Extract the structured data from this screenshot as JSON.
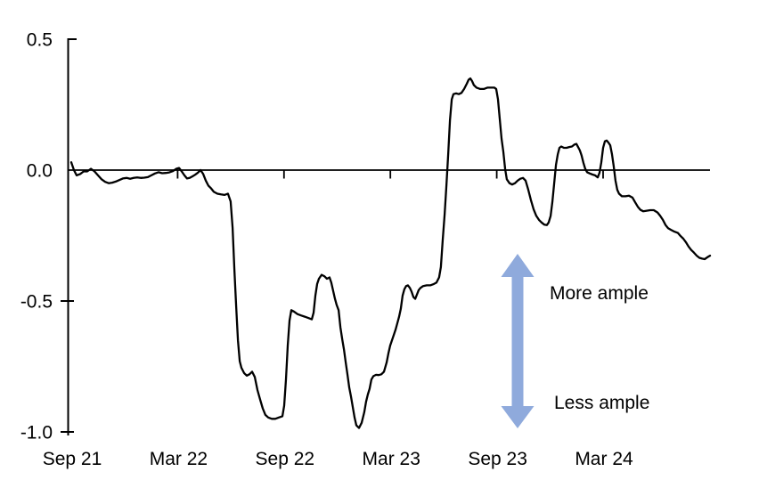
{
  "chart_data": {
    "type": "line",
    "title": "",
    "x_axis": {
      "unit": "months since Sep 2021",
      "tick_labels": [
        "Sep 21",
        "Mar 22",
        "Sep 22",
        "Mar 23",
        "Sep 23",
        "Mar 24"
      ],
      "tick_positions_months": [
        0,
        6,
        12,
        18,
        24,
        30
      ],
      "range_months": [
        0,
        36.03
      ],
      "grid": "off"
    },
    "y_axis": {
      "tick_labels": [
        "0.5",
        "0.0",
        "-0.5",
        "-1.0"
      ],
      "tick_values": [
        0.5,
        0.0,
        -0.5,
        -1.0
      ],
      "range": [
        -1.0,
        0.5
      ],
      "zero_line": true
    },
    "series": [
      {
        "name": "indicator",
        "color": "#000000",
        "points": [
          [
            0,
            0.03
          ],
          [
            0.15,
            0
          ],
          [
            0.3,
            -0.02
          ],
          [
            0.5,
            -0.015
          ],
          [
            0.7,
            -0.005
          ],
          [
            0.9,
            -0.005
          ],
          [
            1.11,
            0.005
          ],
          [
            1.31,
            -0.005
          ],
          [
            1.51,
            -0.02
          ],
          [
            1.71,
            -0.035
          ],
          [
            1.91,
            -0.045
          ],
          [
            2.11,
            -0.05
          ],
          [
            2.31,
            -0.048
          ],
          [
            2.51,
            -0.044
          ],
          [
            2.71,
            -0.038
          ],
          [
            2.91,
            -0.032
          ],
          [
            3.12,
            -0.03
          ],
          [
            3.32,
            -0.033
          ],
          [
            3.52,
            -0.03
          ],
          [
            3.72,
            -0.028
          ],
          [
            3.92,
            -0.03
          ],
          [
            4.12,
            -0.029
          ],
          [
            4.32,
            -0.027
          ],
          [
            4.52,
            -0.02
          ],
          [
            4.72,
            -0.013
          ],
          [
            4.92,
            -0.008
          ],
          [
            5.13,
            -0.012
          ],
          [
            5.33,
            -0.011
          ],
          [
            5.53,
            -0.009
          ],
          [
            5.73,
            -0.004
          ],
          [
            5.93,
            0.005
          ],
          [
            6.08,
            0.008
          ],
          [
            6.23,
            -0.005
          ],
          [
            6.38,
            -0.02
          ],
          [
            6.53,
            -0.032
          ],
          [
            6.68,
            -0.03
          ],
          [
            6.83,
            -0.024
          ],
          [
            6.98,
            -0.018
          ],
          [
            7.14,
            -0.01
          ],
          [
            7.29,
            0
          ],
          [
            7.44,
            -0.015
          ],
          [
            7.59,
            -0.04
          ],
          [
            7.74,
            -0.06
          ],
          [
            7.89,
            -0.07
          ],
          [
            8.04,
            -0.083
          ],
          [
            8.24,
            -0.09
          ],
          [
            8.44,
            -0.093
          ],
          [
            8.64,
            -0.095
          ],
          [
            8.84,
            -0.09
          ],
          [
            8.99,
            -0.12
          ],
          [
            9.1,
            -0.22
          ],
          [
            9.2,
            -0.38
          ],
          [
            9.3,
            -0.52
          ],
          [
            9.4,
            -0.65
          ],
          [
            9.5,
            -0.73
          ],
          [
            9.6,
            -0.755
          ],
          [
            9.75,
            -0.775
          ],
          [
            9.9,
            -0.785
          ],
          [
            10.05,
            -0.78
          ],
          [
            10.2,
            -0.77
          ],
          [
            10.35,
            -0.79
          ],
          [
            10.5,
            -0.84
          ],
          [
            10.65,
            -0.875
          ],
          [
            10.8,
            -0.91
          ],
          [
            10.95,
            -0.935
          ],
          [
            11.11,
            -0.945
          ],
          [
            11.31,
            -0.95
          ],
          [
            11.51,
            -0.95
          ],
          [
            11.71,
            -0.945
          ],
          [
            11.91,
            -0.94
          ],
          [
            12.01,
            -0.9
          ],
          [
            12.11,
            -0.8
          ],
          [
            12.21,
            -0.67
          ],
          [
            12.31,
            -0.575
          ],
          [
            12.41,
            -0.535
          ],
          [
            12.56,
            -0.54
          ],
          [
            12.76,
            -0.55
          ],
          [
            12.96,
            -0.555
          ],
          [
            13.17,
            -0.56
          ],
          [
            13.37,
            -0.565
          ],
          [
            13.57,
            -0.57
          ],
          [
            13.67,
            -0.545
          ],
          [
            13.77,
            -0.48
          ],
          [
            13.87,
            -0.435
          ],
          [
            13.97,
            -0.415
          ],
          [
            14.12,
            -0.4
          ],
          [
            14.27,
            -0.405
          ],
          [
            14.42,
            -0.415
          ],
          [
            14.57,
            -0.41
          ],
          [
            14.67,
            -0.43
          ],
          [
            14.77,
            -0.46
          ],
          [
            14.87,
            -0.49
          ],
          [
            14.97,
            -0.515
          ],
          [
            15.08,
            -0.535
          ],
          [
            15.18,
            -0.6
          ],
          [
            15.28,
            -0.645
          ],
          [
            15.38,
            -0.685
          ],
          [
            15.48,
            -0.735
          ],
          [
            15.58,
            -0.78
          ],
          [
            15.68,
            -0.83
          ],
          [
            15.78,
            -0.865
          ],
          [
            15.88,
            -0.905
          ],
          [
            15.98,
            -0.945
          ],
          [
            16.08,
            -0.975
          ],
          [
            16.23,
            -0.985
          ],
          [
            16.38,
            -0.965
          ],
          [
            16.53,
            -0.925
          ],
          [
            16.63,
            -0.885
          ],
          [
            16.73,
            -0.857
          ],
          [
            16.83,
            -0.835
          ],
          [
            16.93,
            -0.8
          ],
          [
            17.04,
            -0.787
          ],
          [
            17.19,
            -0.782
          ],
          [
            17.34,
            -0.783
          ],
          [
            17.49,
            -0.78
          ],
          [
            17.64,
            -0.77
          ],
          [
            17.79,
            -0.735
          ],
          [
            17.89,
            -0.7
          ],
          [
            17.99,
            -0.67
          ],
          [
            18.09,
            -0.65
          ],
          [
            18.19,
            -0.63
          ],
          [
            18.29,
            -0.61
          ],
          [
            18.39,
            -0.585
          ],
          [
            18.49,
            -0.56
          ],
          [
            18.59,
            -0.53
          ],
          [
            18.69,
            -0.48
          ],
          [
            18.79,
            -0.455
          ],
          [
            18.89,
            -0.443
          ],
          [
            18.99,
            -0.44
          ],
          [
            19.1,
            -0.45
          ],
          [
            19.2,
            -0.465
          ],
          [
            19.3,
            -0.485
          ],
          [
            19.4,
            -0.492
          ],
          [
            19.5,
            -0.475
          ],
          [
            19.6,
            -0.458
          ],
          [
            19.7,
            -0.45
          ],
          [
            19.85,
            -0.443
          ],
          [
            20.05,
            -0.44
          ],
          [
            20.25,
            -0.44
          ],
          [
            20.45,
            -0.435
          ],
          [
            20.6,
            -0.43
          ],
          [
            20.75,
            -0.41
          ],
          [
            20.85,
            -0.37
          ],
          [
            20.95,
            -0.27
          ],
          [
            21.06,
            -0.17
          ],
          [
            21.16,
            -0.06
          ],
          [
            21.26,
            0.06
          ],
          [
            21.36,
            0.19
          ],
          [
            21.46,
            0.27
          ],
          [
            21.56,
            0.29
          ],
          [
            21.71,
            0.293
          ],
          [
            21.86,
            0.29
          ],
          [
            22.01,
            0.295
          ],
          [
            22.16,
            0.31
          ],
          [
            22.31,
            0.33
          ],
          [
            22.41,
            0.345
          ],
          [
            22.51,
            0.35
          ],
          [
            22.61,
            0.34
          ],
          [
            22.71,
            0.325
          ],
          [
            22.86,
            0.315
          ],
          [
            23.07,
            0.31
          ],
          [
            23.27,
            0.31
          ],
          [
            23.47,
            0.315
          ],
          [
            23.67,
            0.315
          ],
          [
            23.87,
            0.315
          ],
          [
            23.97,
            0.31
          ],
          [
            24.07,
            0.27
          ],
          [
            24.17,
            0.195
          ],
          [
            24.27,
            0.12
          ],
          [
            24.37,
            0.07
          ],
          [
            24.47,
            0.005
          ],
          [
            24.57,
            -0.035
          ],
          [
            24.72,
            -0.05
          ],
          [
            24.87,
            -0.055
          ],
          [
            25.03,
            -0.05
          ],
          [
            25.18,
            -0.04
          ],
          [
            25.33,
            -0.033
          ],
          [
            25.48,
            -0.03
          ],
          [
            25.63,
            -0.04
          ],
          [
            25.78,
            -0.075
          ],
          [
            25.93,
            -0.115
          ],
          [
            26.08,
            -0.15
          ],
          [
            26.23,
            -0.175
          ],
          [
            26.38,
            -0.19
          ],
          [
            26.53,
            -0.2
          ],
          [
            26.68,
            -0.208
          ],
          [
            26.83,
            -0.21
          ],
          [
            26.93,
            -0.2
          ],
          [
            27.04,
            -0.175
          ],
          [
            27.14,
            -0.12
          ],
          [
            27.24,
            -0.05
          ],
          [
            27.34,
            0.02
          ],
          [
            27.44,
            0.06
          ],
          [
            27.54,
            0.085
          ],
          [
            27.64,
            0.09
          ],
          [
            27.79,
            0.085
          ],
          [
            27.94,
            0.085
          ],
          [
            28.09,
            0.088
          ],
          [
            28.24,
            0.09
          ],
          [
            28.39,
            0.098
          ],
          [
            28.49,
            0.1
          ],
          [
            28.59,
            0.088
          ],
          [
            28.69,
            0.075
          ],
          [
            28.79,
            0.055
          ],
          [
            28.89,
            0.028
          ],
          [
            28.99,
            0.005
          ],
          [
            29.1,
            -0.008
          ],
          [
            29.25,
            -0.013
          ],
          [
            29.4,
            -0.017
          ],
          [
            29.55,
            -0.02
          ],
          [
            29.7,
            -0.028
          ],
          [
            29.8,
            -0.01
          ],
          [
            29.9,
            0.03
          ],
          [
            30,
            0.085
          ],
          [
            30.1,
            0.11
          ],
          [
            30.2,
            0.113
          ],
          [
            30.3,
            0.105
          ],
          [
            30.4,
            0.095
          ],
          [
            30.5,
            0.06
          ],
          [
            30.6,
            0.015
          ],
          [
            30.7,
            -0.04
          ],
          [
            30.8,
            -0.075
          ],
          [
            30.9,
            -0.09
          ],
          [
            31.06,
            -0.1
          ],
          [
            31.26,
            -0.1
          ],
          [
            31.46,
            -0.098
          ],
          [
            31.66,
            -0.105
          ],
          [
            31.81,
            -0.123
          ],
          [
            31.96,
            -0.14
          ],
          [
            32.11,
            -0.152
          ],
          [
            32.26,
            -0.157
          ],
          [
            32.46,
            -0.155
          ],
          [
            32.66,
            -0.153
          ],
          [
            32.86,
            -0.153
          ],
          [
            33.07,
            -0.162
          ],
          [
            33.22,
            -0.175
          ],
          [
            33.37,
            -0.19
          ],
          [
            33.52,
            -0.21
          ],
          [
            33.67,
            -0.222
          ],
          [
            33.82,
            -0.228
          ],
          [
            34.02,
            -0.235
          ],
          [
            34.22,
            -0.24
          ],
          [
            34.37,
            -0.252
          ],
          [
            34.52,
            -0.262
          ],
          [
            34.67,
            -0.275
          ],
          [
            34.82,
            -0.292
          ],
          [
            34.97,
            -0.305
          ],
          [
            35.12,
            -0.315
          ],
          [
            35.28,
            -0.327
          ],
          [
            35.43,
            -0.335
          ],
          [
            35.58,
            -0.338
          ],
          [
            35.73,
            -0.34
          ],
          [
            35.88,
            -0.333
          ],
          [
            36.03,
            -0.327
          ]
        ]
      }
    ],
    "annotations": {
      "more_label": "More ample",
      "less_label": "Less ample",
      "arrow_color": "#8faadc"
    },
    "legend": "none"
  }
}
